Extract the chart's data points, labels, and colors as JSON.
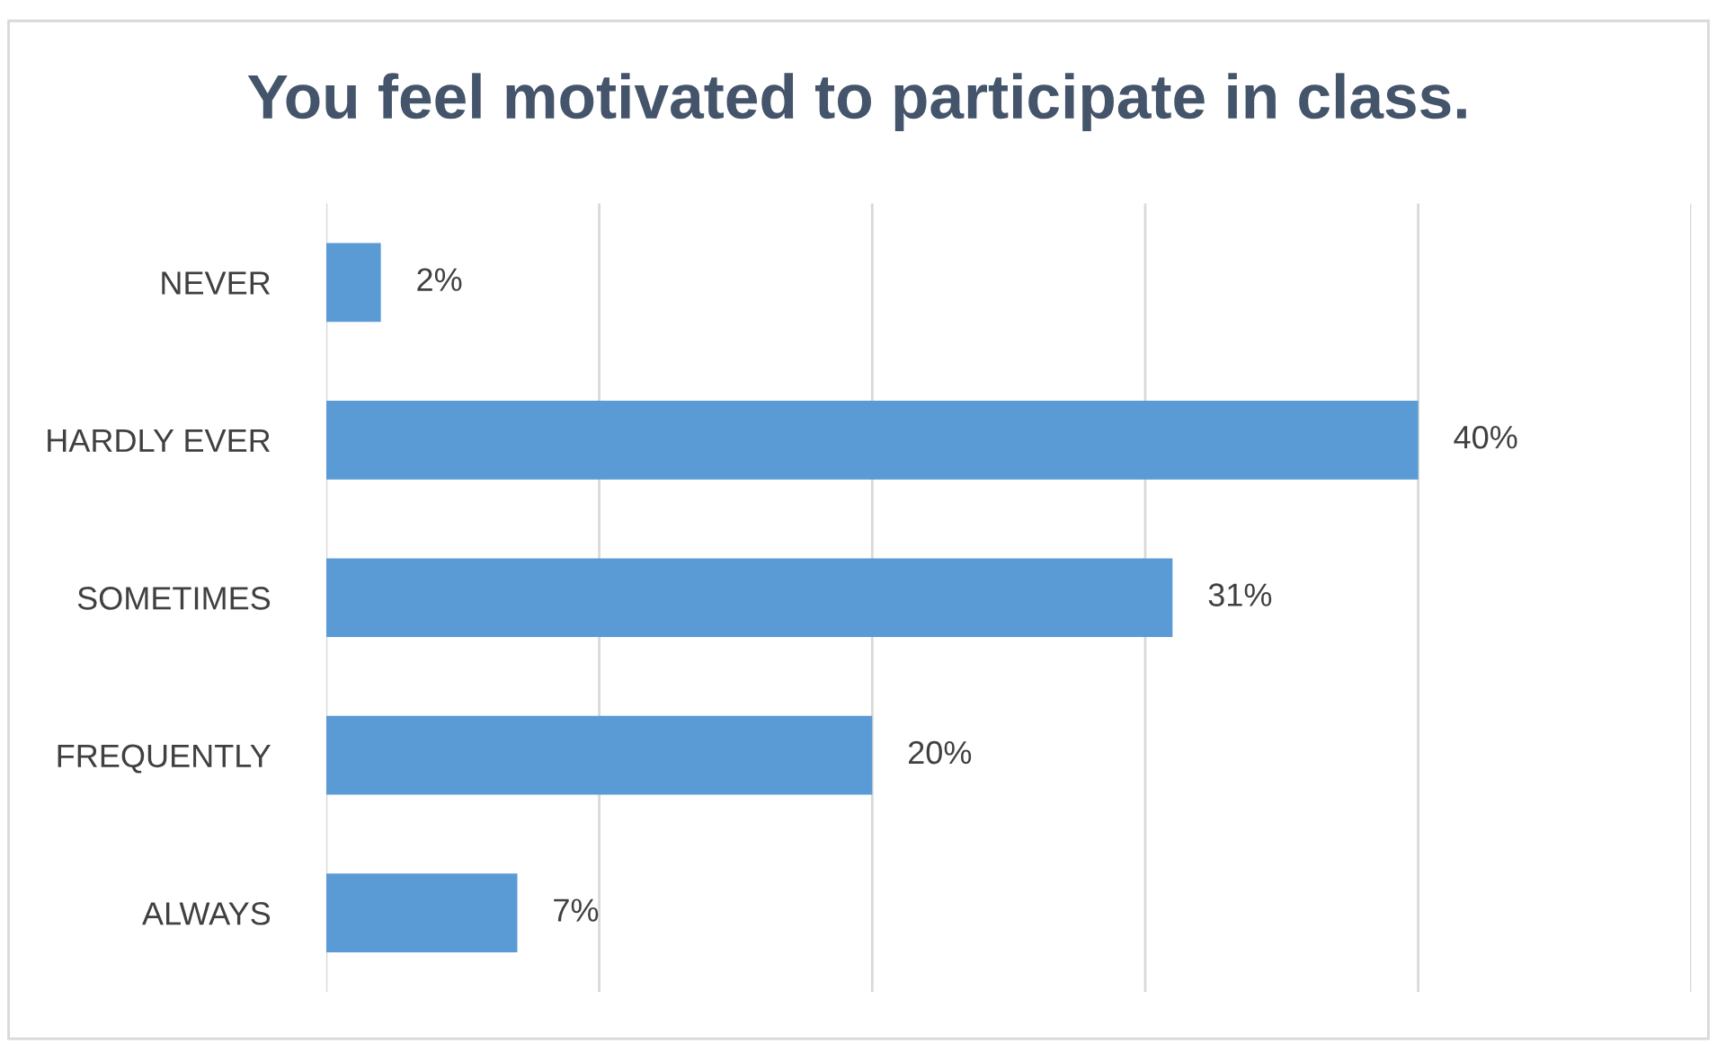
{
  "chart_data": {
    "type": "bar",
    "orientation": "horizontal",
    "title": "You feel motivated to participate in class.",
    "categories": [
      "NEVER",
      "HARDLY EVER",
      "SOMETIMES",
      "FREQUENTLY",
      "ALWAYS"
    ],
    "values": [
      2,
      40,
      31,
      20,
      7
    ],
    "value_labels": [
      "2%",
      "40%",
      "31%",
      "20%",
      "7%"
    ],
    "color": "#5b9bd5",
    "xlim": [
      0,
      50
    ],
    "xticks": [
      {
        "value": 0,
        "label": null
      },
      {
        "value": 10,
        "label": null
      },
      {
        "value": 20,
        "label": null
      },
      {
        "value": 30,
        "label": null
      },
      {
        "value": 40,
        "label": null
      },
      {
        "value": 50,
        "label": null
      }
    ],
    "grid": "x",
    "tick_labels": "y"
  }
}
